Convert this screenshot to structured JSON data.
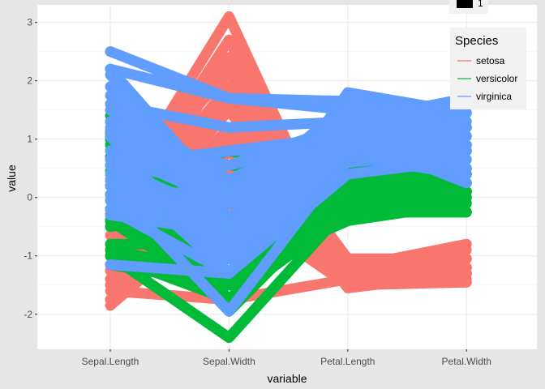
{
  "chart_data": {
    "type": "line",
    "subtype": "parallel-coordinates",
    "xlabel": "variable",
    "ylabel": "value",
    "categories": [
      "Sepal.Length",
      "Sepal.Width",
      "Petal.Length",
      "Petal.Width"
    ],
    "ylim": [
      -2.6,
      3.3
    ],
    "yticks": [
      -2,
      -1,
      0,
      1,
      2,
      3
    ],
    "grid": true,
    "legend": {
      "title": "Species",
      "placement": "top-right",
      "extra_key_label": "1"
    },
    "series": [
      {
        "name": "setosa",
        "color": "#F8766D",
        "lines": [
          [
            -0.9,
            1.0,
            -1.3,
            -1.3
          ],
          [
            -1.15,
            0.0,
            -1.3,
            -1.3
          ],
          [
            -1.4,
            0.3,
            -1.4,
            -1.3
          ],
          [
            -1.5,
            0.1,
            -1.3,
            -1.3
          ],
          [
            -1.0,
            1.2,
            -1.3,
            -1.3
          ],
          [
            -0.5,
            1.9,
            -1.2,
            -1.05
          ],
          [
            -1.5,
            0.8,
            -1.3,
            -1.2
          ],
          [
            -1.0,
            0.8,
            -1.3,
            -1.3
          ],
          [
            -1.75,
            -0.35,
            -1.3,
            -1.3
          ],
          [
            -1.15,
            0.1,
            -1.3,
            -1.45
          ],
          [
            -0.5,
            1.5,
            -1.3,
            -1.3
          ],
          [
            -1.25,
            0.8,
            -1.2,
            -1.3
          ],
          [
            -1.25,
            -0.1,
            -1.3,
            -1.45
          ],
          [
            -1.85,
            -0.1,
            -1.5,
            -1.45
          ],
          [
            -0.05,
            2.15,
            -1.45,
            -1.3
          ],
          [
            -0.2,
            3.1,
            -1.3,
            -1.05
          ],
          [
            -0.5,
            1.9,
            -1.4,
            -1.05
          ],
          [
            -0.9,
            1.0,
            -1.3,
            -1.2
          ],
          [
            -0.2,
            1.7,
            -1.15,
            -1.2
          ],
          [
            -0.9,
            1.7,
            -1.3,
            -1.2
          ],
          [
            -0.5,
            0.8,
            -1.15,
            -1.3
          ],
          [
            -0.9,
            1.5,
            -1.3,
            -1.05
          ],
          [
            -1.5,
            1.2,
            -1.55,
            -1.3
          ],
          [
            -0.9,
            0.5,
            -1.15,
            -0.9
          ],
          [
            -1.25,
            0.8,
            -1.05,
            -1.3
          ],
          [
            -1.0,
            -0.1,
            -1.2,
            -1.3
          ],
          [
            -1.0,
            0.8,
            -1.2,
            -1.05
          ],
          [
            -0.8,
            1.0,
            -1.3,
            -1.3
          ],
          [
            -0.8,
            0.8,
            -1.3,
            -1.3
          ],
          [
            -1.4,
            0.3,
            -1.2,
            -1.3
          ],
          [
            -1.25,
            0.1,
            -1.2,
            -1.3
          ],
          [
            -0.5,
            0.8,
            -1.3,
            -1.05
          ],
          [
            -0.8,
            2.4,
            -1.3,
            -1.4
          ],
          [
            -0.4,
            2.7,
            -1.3,
            -1.3
          ],
          [
            -1.15,
            0.1,
            -1.3,
            -1.3
          ],
          [
            -1.0,
            0.3,
            -1.45,
            -1.3
          ],
          [
            -0.4,
            1.0,
            -1.4,
            -1.3
          ],
          [
            -1.15,
            1.2,
            -1.3,
            -1.45
          ],
          [
            -1.75,
            -0.1,
            -1.4,
            -1.3
          ],
          [
            -0.9,
            0.8,
            -1.3,
            -1.3
          ],
          [
            -1.0,
            1.0,
            -1.4,
            -1.2
          ],
          [
            -1.6,
            -1.75,
            -1.4,
            -1.2
          ],
          [
            -1.75,
            0.3,
            -1.4,
            -1.3
          ],
          [
            -1.0,
            1.0,
            -1.2,
            -0.8
          ],
          [
            -0.9,
            1.7,
            -1.05,
            -1.05
          ],
          [
            -1.25,
            -0.1,
            -1.3,
            -1.2
          ],
          [
            -0.9,
            1.7,
            -1.2,
            -1.3
          ],
          [
            -1.5,
            0.3,
            -1.3,
            -1.3
          ],
          [
            -0.65,
            1.5,
            -1.3,
            -1.3
          ],
          [
            -1.0,
            0.5,
            -1.3,
            -1.3
          ]
        ]
      },
      {
        "name": "versicolor",
        "color": "#00BA38",
        "lines": [
          [
            1.4,
            0.3,
            0.5,
            0.25
          ],
          [
            0.7,
            0.3,
            0.4,
            0.4
          ],
          [
            1.3,
            0.1,
            0.6,
            0.4
          ],
          [
            -0.4,
            -1.75,
            0.1,
            0.1
          ],
          [
            0.8,
            -0.6,
            0.45,
            0.4
          ],
          [
            -0.2,
            -0.6,
            0.4,
            0.1
          ],
          [
            0.55,
            0.55,
            0.5,
            0.5
          ],
          [
            -1.15,
            -1.5,
            -0.25,
            -0.25
          ],
          [
            0.9,
            -0.35,
            0.45,
            0.1
          ],
          [
            -0.8,
            -0.8,
            0.1,
            0.25
          ],
          [
            -1.0,
            -2.4,
            -0.15,
            -0.25
          ],
          [
            0.05,
            -0.1,
            0.25,
            0.4
          ],
          [
            0.2,
            -1.95,
            0.1,
            -0.25
          ],
          [
            0.3,
            -0.35,
            0.5,
            0.25
          ],
          [
            -0.3,
            -0.35,
            -0.1,
            0.1
          ],
          [
            1.0,
            0.1,
            0.35,
            0.25
          ],
          [
            -0.3,
            -0.1,
            0.4,
            0.4
          ],
          [
            -0.05,
            -0.8,
            0.2,
            -0.25
          ],
          [
            0.45,
            -1.95,
            0.4,
            0.4
          ],
          [
            -0.3,
            -1.3,
            0.1,
            -0.1
          ],
          [
            0.05,
            0.3,
            0.6,
            0.8
          ],
          [
            0.3,
            -0.6,
            0.1,
            0.1
          ],
          [
            0.55,
            -1.3,
            0.65,
            0.4
          ],
          [
            0.3,
            -0.6,
            0.5,
            0.0
          ],
          [
            0.65,
            -0.35,
            0.3,
            0.1
          ],
          [
            0.9,
            -0.1,
            0.35,
            0.25
          ],
          [
            1.1,
            -0.6,
            0.6,
            0.25
          ],
          [
            1.0,
            -0.1,
            0.7,
            0.65
          ],
          [
            0.2,
            -0.35,
            0.4,
            0.4
          ],
          [
            -0.2,
            -1.05,
            -0.15,
            -0.25
          ],
          [
            -0.4,
            -1.5,
            0.0,
            -0.1
          ],
          [
            -0.4,
            -1.5,
            -0.05,
            -0.25
          ],
          [
            -0.05,
            -0.8,
            0.1,
            0.0
          ],
          [
            0.2,
            -0.8,
            0.75,
            0.5
          ],
          [
            -0.5,
            -0.1,
            0.4,
            0.4
          ],
          [
            0.2,
            0.8,
            0.4,
            0.5
          ],
          [
            1.0,
            0.1,
            0.5,
            0.4
          ],
          [
            0.55,
            -1.75,
            0.35,
            0.1
          ],
          [
            -0.3,
            -0.1,
            0.2,
            0.1
          ],
          [
            -0.4,
            -1.3,
            0.1,
            0.1
          ],
          [
            -0.4,
            -1.05,
            0.35,
            0.0
          ],
          [
            0.3,
            -0.1,
            0.45,
            0.25
          ],
          [
            -0.05,
            -1.05,
            0.1,
            0.0
          ],
          [
            -1.0,
            -1.75,
            -0.25,
            -0.25
          ],
          [
            -0.3,
            -0.8,
            0.2,
            0.1
          ],
          [
            -0.2,
            -0.1,
            0.2,
            0.0
          ],
          [
            -0.2,
            -0.35,
            0.2,
            0.1
          ],
          [
            0.4,
            -0.35,
            0.3,
            0.1
          ],
          [
            -0.9,
            -1.3,
            -0.4,
            -0.1
          ],
          [
            -0.2,
            -0.6,
            0.15,
            0.1
          ]
        ]
      },
      {
        "name": "virginica",
        "color": "#619CFF",
        "lines": [
          [
            0.55,
            0.55,
            1.25,
            1.7
          ],
          [
            -0.05,
            -0.8,
            0.75,
            0.9
          ],
          [
            1.5,
            -0.1,
            1.2,
            1.2
          ],
          [
            0.55,
            -0.35,
            1.05,
            0.8
          ],
          [
            0.8,
            -0.1,
            1.15,
            1.3
          ],
          [
            2.1,
            -0.1,
            1.6,
            1.2
          ],
          [
            -1.15,
            -1.3,
            0.4,
            0.65
          ],
          [
            1.75,
            -0.35,
            1.45,
            0.8
          ],
          [
            1.05,
            -1.3,
            1.15,
            0.8
          ],
          [
            1.6,
            1.2,
            1.3,
            1.7
          ],
          [
            0.8,
            0.3,
            0.75,
            1.05
          ],
          [
            0.65,
            -0.8,
            0.85,
            0.9
          ],
          [
            1.15,
            -0.1,
            1.0,
            1.2
          ],
          [
            -0.2,
            -1.3,
            0.7,
            1.05
          ],
          [
            -0.05,
            -0.6,
            0.75,
            1.6
          ],
          [
            0.65,
            0.3,
            0.85,
            1.45
          ],
          [
            0.8,
            -0.1,
            1.0,
            0.8
          ],
          [
            2.2,
            1.7,
            1.65,
            1.3
          ],
          [
            2.2,
            -1.05,
            1.8,
            1.45
          ],
          [
            0.2,
            -1.95,
            0.7,
            0.4
          ],
          [
            1.3,
            0.3,
            1.1,
            1.45
          ],
          [
            -0.3,
            -0.6,
            0.65,
            1.05
          ],
          [
            2.2,
            -0.6,
            1.7,
            1.05
          ],
          [
            0.55,
            -0.8,
            0.65,
            0.8
          ],
          [
            1.05,
            0.55,
            1.1,
            1.2
          ],
          [
            1.6,
            0.3,
            1.3,
            0.8
          ],
          [
            0.4,
            -0.6,
            0.6,
            0.8
          ],
          [
            0.3,
            -0.1,
            0.65,
            0.8
          ],
          [
            0.65,
            -0.6,
            1.05,
            1.2
          ],
          [
            1.6,
            -0.1,
            1.15,
            0.5
          ],
          [
            1.9,
            -0.6,
            1.35,
            0.9
          ],
          [
            2.5,
            1.7,
            1.5,
            1.05
          ],
          [
            0.65,
            -0.6,
            1.05,
            1.3
          ],
          [
            0.55,
            -0.6,
            0.75,
            0.4
          ],
          [
            0.3,
            -1.05,
            1.05,
            0.25
          ],
          [
            2.2,
            -0.1,
            1.35,
            1.45
          ],
          [
            0.55,
            0.8,
            1.05,
            1.6
          ],
          [
            0.65,
            0.1,
            1.0,
            0.8
          ],
          [
            0.2,
            -0.1,
            0.6,
            0.8
          ],
          [
            1.3,
            0.1,
            0.9,
            1.2
          ],
          [
            1.05,
            0.1,
            1.05,
            1.6
          ],
          [
            1.3,
            0.1,
            0.75,
            1.45
          ],
          [
            -0.05,
            -0.8,
            0.75,
            0.9
          ],
          [
            1.2,
            0.3,
            1.2,
            1.45
          ],
          [
            1.05,
            0.55,
            1.1,
            1.7
          ],
          [
            1.05,
            -0.1,
            0.8,
            1.45
          ],
          [
            0.55,
            -1.3,
            0.7,
            0.9
          ],
          [
            0.8,
            -0.1,
            0.8,
            1.05
          ],
          [
            0.4,
            0.8,
            0.9,
            1.45
          ],
          [
            0.05,
            -0.1,
            0.75,
            0.8
          ]
        ]
      }
    ]
  }
}
